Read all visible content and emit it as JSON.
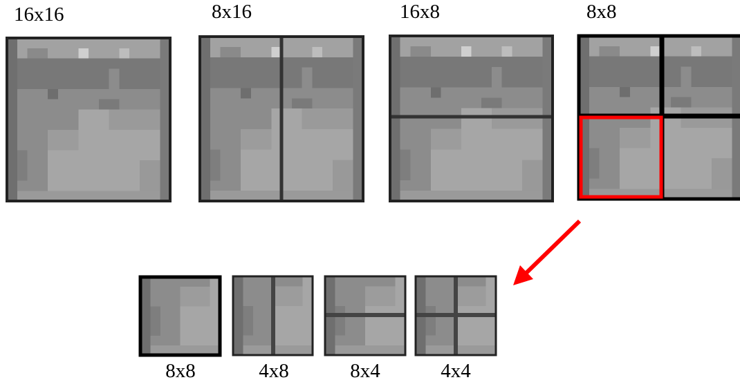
{
  "top_blocks": [
    {
      "label": "16x16"
    },
    {
      "label": "8x16"
    },
    {
      "label": "16x8"
    },
    {
      "label": "8x8"
    }
  ],
  "bottom_blocks": [
    {
      "label": "8x8"
    },
    {
      "label": "4x8"
    },
    {
      "label": "8x4"
    },
    {
      "label": "4x4"
    }
  ]
}
